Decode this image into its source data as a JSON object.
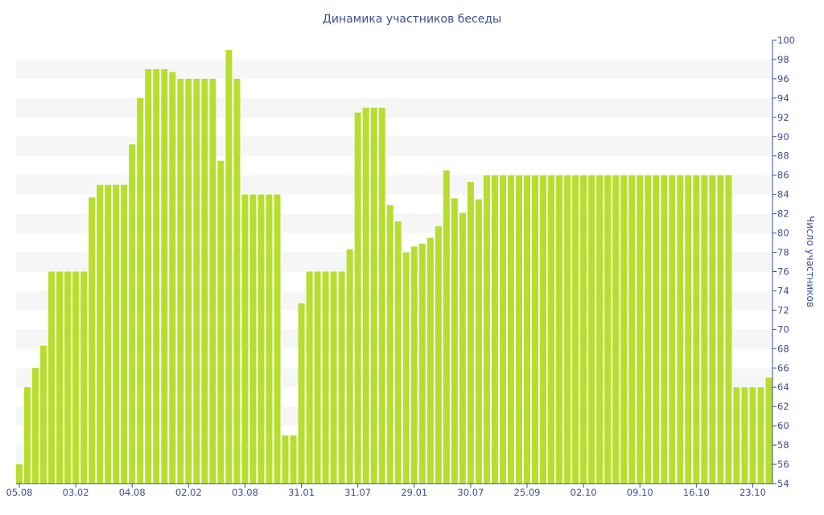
{
  "chart_data": {
    "type": "bar",
    "title": "Динамика участников беседы",
    "xlabel": "",
    "ylabel": "Число участников",
    "ylim": [
      54,
      100
    ],
    "y_ticks": [
      54,
      56,
      58,
      60,
      62,
      64,
      66,
      68,
      70,
      72,
      74,
      76,
      78,
      80,
      82,
      84,
      86,
      88,
      90,
      92,
      94,
      96,
      98,
      100
    ],
    "x_tick_labels": [
      {
        "index": 0,
        "label": "05.08"
      },
      {
        "index": 7,
        "label": "03.02"
      },
      {
        "index": 14,
        "label": "04.08"
      },
      {
        "index": 21,
        "label": "02.02"
      },
      {
        "index": 28,
        "label": "03.08"
      },
      {
        "index": 35,
        "label": "31.01"
      },
      {
        "index": 42,
        "label": "31.07"
      },
      {
        "index": 49,
        "label": "29.01"
      },
      {
        "index": 56,
        "label": "30.07"
      },
      {
        "index": 63,
        "label": "25.09"
      },
      {
        "index": 70,
        "label": "02.10"
      },
      {
        "index": 77,
        "label": "09.10"
      },
      {
        "index": 84,
        "label": "16.10"
      },
      {
        "index": 91,
        "label": "23.10"
      }
    ],
    "values": [
      56,
      64,
      66,
      68.3,
      76,
      76,
      76,
      76,
      76,
      83.7,
      85,
      85,
      85,
      85,
      89.2,
      94,
      97,
      97,
      97,
      96.7,
      96,
      96,
      96,
      96,
      96,
      87.5,
      99,
      96,
      84,
      84,
      84,
      84,
      84,
      59,
      59,
      72.7,
      76,
      76,
      76,
      76,
      76,
      78.3,
      92.5,
      93,
      93,
      93,
      82.9,
      81.2,
      78,
      78.6,
      78.9,
      79.5,
      80.7,
      86.5,
      83.6,
      82.1,
      85.3,
      83.5,
      86,
      86,
      86,
      86,
      86,
      86,
      86,
      86,
      86,
      86,
      86,
      86,
      86,
      86,
      86,
      86,
      86,
      86,
      86,
      86,
      86,
      86,
      86,
      86,
      86,
      86,
      86,
      86,
      86,
      86,
      86,
      64,
      64,
      64,
      64,
      65
    ],
    "colors": {
      "bar": "#b7de2e",
      "text": "#3b4f93",
      "band": "#f6f6f6",
      "axis": "#3b4f93"
    },
    "grid": "alternating horizontal bands",
    "legend": "none"
  }
}
